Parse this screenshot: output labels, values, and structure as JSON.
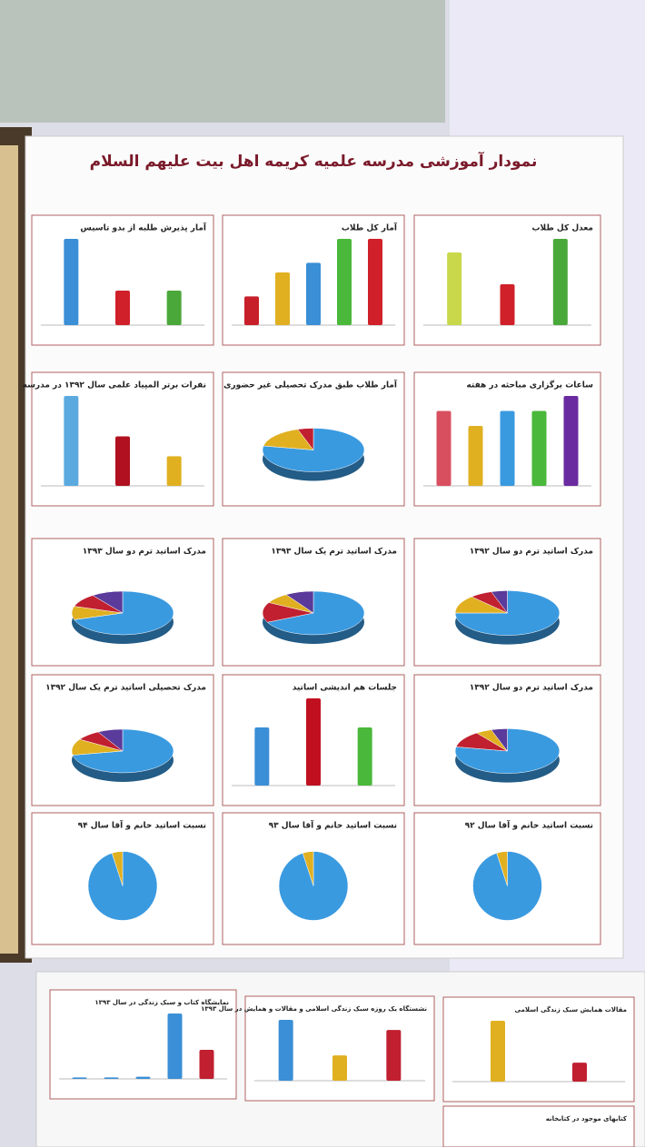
{
  "poster": {
    "title": "نمودار آموزشی مدرسه علمیه کریمه اهل بیت علیهم السلام"
  },
  "panels": [
    {
      "title": "آمار پذیرش طلبه از بدو تاسیس",
      "type": "bar",
      "values": [
        100,
        40,
        40
      ],
      "colors": [
        "#3a8fd6",
        "#d0202a",
        "#4aa83a"
      ]
    },
    {
      "title": "آمار کل طلاب",
      "type": "bar",
      "values": [
        30,
        55,
        65,
        90,
        90
      ],
      "colors": [
        "#c8202a",
        "#e0b020",
        "#3a8fd6",
        "#4ab83a",
        "#d0202a"
      ]
    },
    {
      "title": "معدل کل طلاب",
      "type": "bar",
      "values": [
        80,
        45,
        95
      ],
      "colors": [
        "#c8d84a",
        "#d0202a",
        "#4aa83a"
      ]
    },
    {
      "title": "نفرات برتر المپیاد علمی سال ۱۳۹۲ در مدرسه",
      "type": "bar",
      "values": [
        100,
        55,
        33
      ],
      "colors": [
        "#5aaae0",
        "#b01020",
        "#e0b020"
      ]
    },
    {
      "title": "آمار طلاب طبق مدرک تحصیلی غیر حضوری",
      "type": "pie",
      "values": [
        78,
        17,
        5
      ],
      "colors": [
        "#3a9ae0",
        "#e0b020",
        "#c02030"
      ]
    },
    {
      "title": "ساعات برگزاری مباحثه در هفته",
      "type": "bar",
      "values": [
        60,
        48,
        60,
        60,
        72
      ],
      "colors": [
        "#d85060",
        "#e0b020",
        "#3a9ae0",
        "#4ab83a",
        "#6a2aa0"
      ]
    },
    {
      "title": "مدرک اساتید ترم دو سال ۱۳۹۳",
      "type": "pie",
      "values": [
        70,
        10,
        10,
        10
      ],
      "colors": [
        "#3a9ae0",
        "#e0b020",
        "#c02030",
        "#5a3a9a"
      ]
    },
    {
      "title": "مدرک اساتید ترم یک سال ۱۳۹۳",
      "type": "pie",
      "values": [
        68,
        15,
        8,
        9
      ],
      "colors": [
        "#3a9ae0",
        "#c02030",
        "#e0b020",
        "#5a3a9a"
      ]
    },
    {
      "title": "مدرک اساتید ترم دو سال ۱۳۹۲",
      "type": "pie",
      "values": [
        75,
        13,
        7,
        5
      ],
      "colors": [
        "#3a9ae0",
        "#e0b020",
        "#c02030",
        "#5a3a9a"
      ]
    },
    {
      "title": "مدرک تحصیلی اساتید ترم یک سال ۱۳۹۲",
      "type": "pie",
      "values": [
        72,
        12,
        8,
        8
      ],
      "colors": [
        "#3a9ae0",
        "#e0b020",
        "#c02030",
        "#5a3a9a"
      ]
    },
    {
      "title": "جلسات هم اندیشی اساتید",
      "type": "bar",
      "values": [
        60,
        90,
        60
      ],
      "colors": [
        "#3a8fd6",
        "#c01020",
        "#4ab83a"
      ]
    },
    {
      "title": "مدرک اساتید ترم دو سال ۱۳۹۲",
      "type": "pie",
      "values": [
        78,
        12,
        5,
        5
      ],
      "colors": [
        "#3a9ae0",
        "#c02030",
        "#e0b020",
        "#5a3a9a"
      ]
    },
    {
      "title": "نسبت اساتید خانم و آقا سال ۹۴",
      "type": "pie",
      "flat": true,
      "values": [
        95,
        5
      ],
      "colors": [
        "#3a9ae0",
        "#e0b020"
      ]
    },
    {
      "title": "نسبت اساتید خانم و آقا سال ۹۳",
      "type": "pie",
      "flat": true,
      "values": [
        95,
        5
      ],
      "colors": [
        "#3a9ae0",
        "#e0b020"
      ]
    },
    {
      "title": "نسبت اساتید خانم و آقا سال ۹۲",
      "type": "pie",
      "flat": true,
      "values": [
        95,
        5
      ],
      "colors": [
        "#3a9ae0",
        "#e0b020"
      ]
    }
  ],
  "lower_panels": [
    {
      "title": "نمایشگاه کتاب و سبک زندگی در سال ۱۳۹۳",
      "type": "bar",
      "values": [
        2,
        2,
        3,
        90,
        40
      ],
      "colors": [
        "#3a8fd6",
        "#3a8fd6",
        "#3a8fd6",
        "#3a8fd6",
        "#c02030"
      ]
    },
    {
      "title": "نشستگاه یک روزه سبک زندگی اسلامی و مقالات و همایش در سال ۱۳۹۳",
      "type": "bar",
      "values": [
        60,
        25,
        50
      ],
      "colors": [
        "#3a8fd6",
        "#e0b020",
        "#c02030"
      ]
    },
    {
      "title": "مقالات همایش سبک زندگی اسلامی",
      "type": "bar",
      "values": [
        80,
        25
      ],
      "colors": [
        "#e0b020",
        "#c02030"
      ]
    },
    {
      "title": "کتابهای موجود در کتابخانه",
      "type": "none"
    }
  ]
}
